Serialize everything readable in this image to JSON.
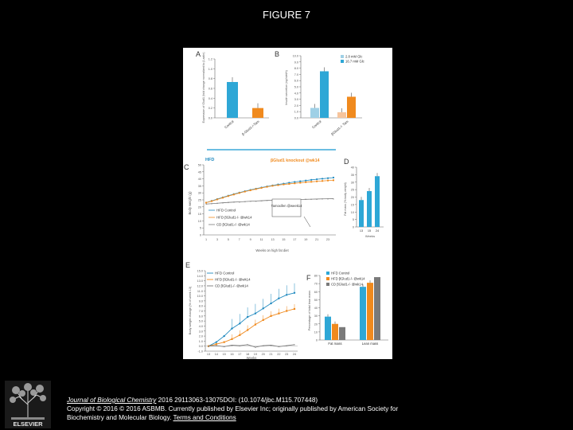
{
  "slide": {
    "title": "FIGURE 7"
  },
  "colors": {
    "blue": "#1f89bf",
    "orange": "#f08a1e",
    "gray": "#7a7a7a",
    "lightblue": "#9fd0e6",
    "peach": "#f6c49c",
    "bar_teal": "#2ea7d6"
  },
  "panels": {
    "A": {
      "label": "A",
      "ylabel": "Expression of Glud1 (fold change normalized to β-actin)",
      "categories": [
        "Control",
        "β-Glud1-/-Tam"
      ],
      "values": [
        0.73,
        0.2
      ],
      "ylim": [
        0,
        1.2
      ]
    },
    "B": {
      "label": "B",
      "ylabel": "Insulin secretion (ng/islet/h)",
      "categories": [
        "Control",
        "βGlud1-/- Tam"
      ],
      "legend": [
        "2.8 mM Glc",
        "16.7 mM Glc"
      ],
      "series": [
        {
          "name": "2.8 mM Glc",
          "values": [
            1.6,
            0.9
          ]
        },
        {
          "name": "16.7 mM Glc",
          "values": [
            7.5,
            3.4
          ]
        }
      ],
      "ylim": [
        0,
        10.0
      ]
    },
    "C": {
      "label": "C",
      "banner_left": "HFD",
      "banner_right": "βGlud1 knockout @wk14",
      "ylabel": "Body weight (g)",
      "xlabel": "Weeks on high fat diet",
      "annotation": "Tamoxifen @week14",
      "x": [
        1,
        2,
        3,
        4,
        5,
        6,
        7,
        8,
        9,
        10,
        11,
        12,
        13,
        14,
        15,
        16,
        17,
        18,
        19,
        20,
        21,
        22,
        23,
        24
      ],
      "series": [
        {
          "name": "HFD Control",
          "values": [
            23,
            24.3,
            25.6,
            26.8,
            28,
            29.1,
            30.2,
            31.2,
            32.1,
            33,
            33.8,
            34.6,
            35.3,
            36,
            36.6,
            37.2,
            37.8,
            38.3,
            38.8,
            39.3,
            39.7,
            40.1,
            40.5,
            40.9
          ]
        },
        {
          "name": "HFD βGlud1-/- @wk14",
          "values": [
            23,
            24.1,
            25.3,
            26.5,
            27.7,
            28.8,
            29.9,
            30.9,
            31.8,
            32.7,
            33.5,
            34.3,
            35,
            35.5,
            36,
            36.4,
            36.8,
            37.2,
            37.6,
            37.9,
            38.2,
            38.5,
            38.8,
            39
          ]
        },
        {
          "name": "CD βGlud1-/- @wk14",
          "values": [
            22,
            22.3,
            22.6,
            22.9,
            23.2,
            23.4,
            23.6,
            23.8,
            24,
            24.2,
            24.4,
            24.6,
            24.8,
            24.9,
            25,
            25.1,
            25.2,
            25.3,
            25.4,
            25.5,
            25.6,
            25.7,
            25.8,
            25.9
          ]
        }
      ],
      "ylim": [
        0,
        50
      ]
    },
    "D": {
      "label": "D",
      "ylabel": "Fat mass (% body weight)",
      "xlabel": "Weeks",
      "categories": [
        "13",
        "15",
        "24"
      ],
      "values": [
        18,
        24,
        34
      ],
      "ylim": [
        0,
        40
      ]
    },
    "E": {
      "label": "E",
      "ylabel": "Body weight change (% of week 13)",
      "xlabel": "Weeks",
      "x": [
        13,
        14,
        15,
        16,
        17,
        18,
        19,
        20,
        21,
        22,
        23,
        24
      ],
      "legend": [
        "HFD Control",
        "HFD βGlud1-/- @wk14",
        "CD βGlud1-/- @wk14"
      ],
      "series": [
        {
          "name": "HFD Control",
          "values": [
            0,
            0.8,
            2,
            3.5,
            4.5,
            5.8,
            6.5,
            7.5,
            8.5,
            9.5,
            10.2,
            10.6
          ]
        },
        {
          "name": "HFD βGlud1-/- @wk14",
          "values": [
            0,
            0.4,
            0.8,
            1.4,
            2.2,
            3.2,
            4.3,
            5.2,
            6,
            6.5,
            7,
            7.4
          ]
        },
        {
          "name": "CD βGlud1-/- @wk14",
          "values": [
            0,
            0.1,
            -0.1,
            0.2,
            0.1,
            0.3,
            -0.2,
            0.1,
            0.2,
            -0.1,
            0.1,
            0.3
          ]
        }
      ],
      "ylim": [
        -1,
        15
      ]
    },
    "F": {
      "label": "F",
      "ylabel": "Percentage of total lean mass",
      "categories": [
        "Fat mass",
        "Lean mass"
      ],
      "legend": [
        "HFD Control",
        "HFD βGlud1-/- @wk14",
        "CD βGlud1-/- @wk14"
      ],
      "series": [
        {
          "name": "HFD Control",
          "values": [
            29,
            66
          ]
        },
        {
          "name": "HFD βGlud1-/- @wk14",
          "values": [
            20,
            71
          ]
        },
        {
          "name": "CD βGlud1-/- @wk14",
          "values": [
            16,
            78
          ]
        }
      ],
      "ylim": [
        0,
        80
      ]
    }
  },
  "citation": {
    "journal": "Journal of Biological Chemistry",
    "details": " 2016 29113063-13075DOI: (10.1074/jbc.M115.707448)",
    "copyright": "Copyright © 2016 © 2016 ASBMB. Currently published by Elsevier Inc; originally published by American Society for Biochemistry and Molecular Biology.",
    "link": "Terms and Conditions"
  },
  "logo": {
    "text": "ELSEVIER"
  }
}
